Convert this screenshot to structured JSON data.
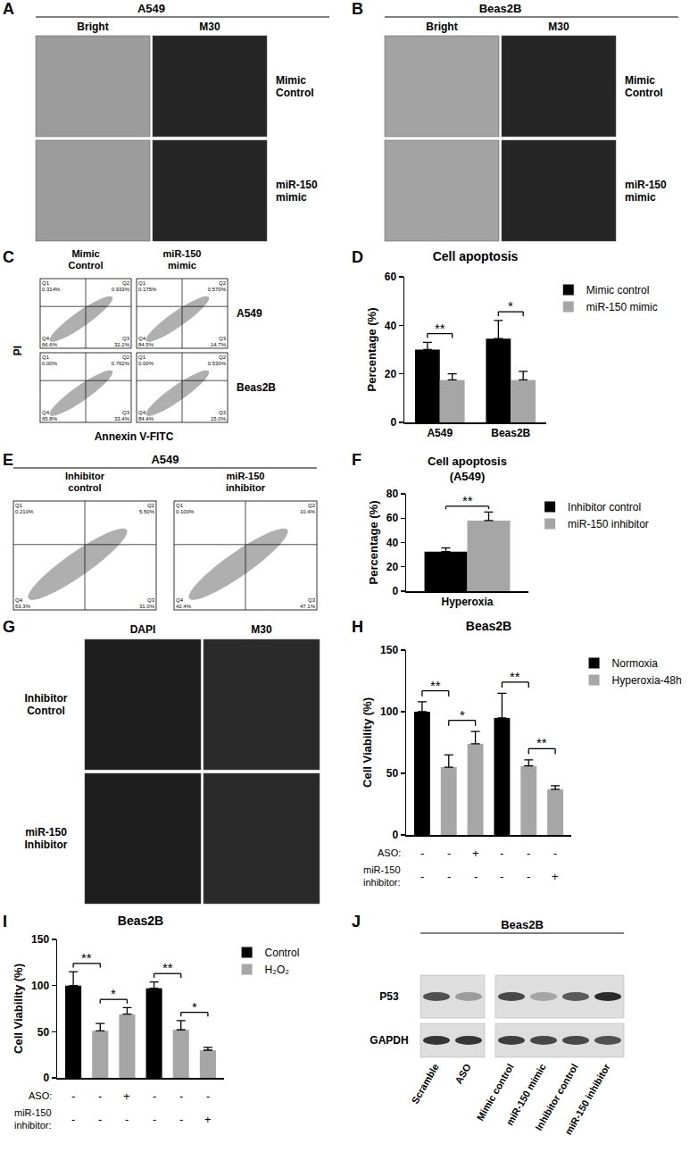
{
  "chart_data": [
    {
      "panel": "D",
      "type": "bar",
      "title": "Cell apoptosis",
      "y_label": "Percentage (%)",
      "categories": [
        "A549",
        "Beas2B"
      ],
      "series": [
        {
          "name": "Mimic control",
          "color": "#000000",
          "values": [
            30,
            34.5
          ],
          "errors": [
            3,
            7.5
          ]
        },
        {
          "name": "miR-150 mimic",
          "color": "#a6a6a6",
          "values": [
            17.5,
            17.5
          ],
          "errors": [
            2.5,
            3.5
          ]
        }
      ],
      "ylim": [
        0,
        60
      ],
      "yticks": [
        0,
        20,
        40,
        60
      ],
      "grid": false,
      "legend": "right",
      "comparisons": [
        {
          "category": "A549",
          "label": "**"
        },
        {
          "category": "Beas2B",
          "label": "*"
        }
      ]
    },
    {
      "panel": "F",
      "type": "bar",
      "title": "Cell apoptosis\n(A549)",
      "y_label": "Percentage (%)",
      "categories": [
        "Hyperoxia"
      ],
      "series": [
        {
          "name": "Inhibitor control",
          "color": "#000000",
          "values": [
            32.5
          ],
          "errors": [
            3
          ]
        },
        {
          "name": "miR-150 inhibitor",
          "color": "#a6a6a6",
          "values": [
            58
          ],
          "errors": [
            7
          ]
        }
      ],
      "ylim": [
        0,
        80
      ],
      "yticks": [
        0,
        20,
        40,
        60,
        80
      ],
      "grid": false,
      "legend": "right",
      "comparisons": [
        {
          "category": "Hyperoxia",
          "label": "**"
        }
      ]
    },
    {
      "panel": "H",
      "type": "bar",
      "title": "Beas2B",
      "y_label": "Cell Viability (%)",
      "categories": [
        null,
        null,
        null,
        null,
        null,
        null
      ],
      "series": [
        {
          "name": "Normoxia",
          "color": "#000000",
          "values": [
            100,
            null,
            null,
            95,
            null,
            null
          ],
          "errors": [
            8,
            null,
            null,
            20,
            null,
            null
          ]
        },
        {
          "name": "Hyperoxia-48h",
          "color": "#a6a6a6",
          "values": [
            null,
            55,
            74,
            null,
            56,
            37
          ],
          "errors": [
            null,
            10,
            10,
            null,
            5,
            3
          ]
        }
      ],
      "ylim": [
        0,
        150
      ],
      "yticks": [
        0,
        50,
        100,
        150
      ],
      "grid": false,
      "legend": "right",
      "tick_labels": "y",
      "treatments": [
        {
          "label": "ASO:",
          "marks": [
            "-",
            "-",
            "+",
            "-",
            "-",
            "-"
          ]
        },
        {
          "label": "miR-150\ninhibitor:",
          "marks": [
            "-",
            "-",
            "-",
            "-",
            "-",
            "+"
          ]
        }
      ],
      "comparisons": [
        {
          "between": [
            0,
            1
          ],
          "label": "**"
        },
        {
          "between": [
            1,
            2
          ],
          "label": "*"
        },
        {
          "between": [
            3,
            4
          ],
          "label": "**"
        },
        {
          "between": [
            4,
            5
          ],
          "label": "**"
        }
      ]
    },
    {
      "panel": "I",
      "type": "bar",
      "title": "Beas2B",
      "y_label": "Cell Viability (%)",
      "categories": [
        null,
        null,
        null,
        null,
        null,
        null
      ],
      "series": [
        {
          "name": "Control",
          "color": "#000000",
          "values": [
            100,
            null,
            null,
            97,
            null,
            null
          ],
          "errors": [
            15,
            null,
            null,
            7,
            null,
            null
          ]
        },
        {
          "name": "H₂O₂",
          "color": "#a6a6a6",
          "values": [
            null,
            51,
            69,
            null,
            52,
            30
          ],
          "errors": [
            null,
            8,
            7,
            null,
            10,
            3
          ]
        }
      ],
      "ylim": [
        0,
        150
      ],
      "yticks": [
        0,
        50,
        100,
        150
      ],
      "grid": false,
      "legend": "right",
      "tick_labels": "y",
      "treatments": [
        {
          "label": "ASO:",
          "marks": [
            "-",
            "-",
            "+",
            "-",
            "-",
            "-"
          ]
        },
        {
          "label": "miR-150\ninhibitor:",
          "marks": [
            "-",
            "-",
            "-",
            "-",
            "-",
            "+"
          ]
        }
      ],
      "comparisons": [
        {
          "between": [
            0,
            1
          ],
          "label": "**"
        },
        {
          "between": [
            1,
            2
          ],
          "label": "*"
        },
        {
          "between": [
            3,
            4
          ],
          "label": "**"
        },
        {
          "between": [
            4,
            5
          ],
          "label": "*"
        }
      ]
    }
  ],
  "panels": [
    {
      "panel": "A",
      "type": "micrograph",
      "title": "A549",
      "columns": [
        "Bright",
        "M30"
      ],
      "rows": [
        "Mimic\nControl",
        "miR-150\nmimic"
      ]
    },
    {
      "panel": "B",
      "type": "micrograph",
      "title": "Beas2B",
      "columns": [
        "Bright",
        "M30"
      ],
      "rows": [
        "Mimic\nControl",
        "miR-150\nmimic"
      ]
    },
    {
      "panel": "C",
      "type": "flow",
      "columns": [
        "Mimic\nControl",
        "miR-150\nmimic"
      ],
      "rows": [
        "A549",
        "Beas2B"
      ],
      "x_label": "Annexin V-FITC",
      "y_label": "PI",
      "plots": [
        {
          "Q1": "Q1\n0.314%",
          "Q2": "Q2\n0.933%",
          "Q3": "Q3\n32.2%",
          "Q4": "Q4\n66.6%"
        },
        {
          "Q1": "Q1\n0.175%",
          "Q2": "Q2\n0.570%",
          "Q3": "Q3\n14.7%",
          "Q4": "Q4\n84.5%"
        },
        {
          "Q1": "Q1\n0.00%",
          "Q2": "Q2\n0.762%",
          "Q3": "Q3\n33.4%",
          "Q4": "Q4\n65.8%"
        },
        {
          "Q1": "Q1\n0.00%",
          "Q2": "Q2\n0.530%",
          "Q3": "Q3\n15.0%",
          "Q4": "Q4\n84.4%"
        }
      ]
    },
    {
      "panel": "E",
      "type": "flow",
      "title": "A549",
      "columns": [
        "Inhibitor\ncontrol",
        "miR-150\ninhibitor"
      ],
      "plots": [
        {
          "Q1": "Q1\n0.210%",
          "Q2": "Q2\n5.50%",
          "Q3": "Q3\n31.0%",
          "Q4": "Q4\n63.3%"
        },
        {
          "Q1": "Q1\n0.100%",
          "Q2": "Q2\n10.4%",
          "Q3": "Q3\n47.1%",
          "Q4": "Q4\n42.4%"
        }
      ]
    },
    {
      "panel": "G",
      "type": "micrograph",
      "columns": [
        "DAPI",
        "M30"
      ],
      "rows": [
        "Inhibitor\nControl",
        "miR-150\nInhibitor"
      ]
    },
    {
      "panel": "J",
      "type": "blot",
      "title": "Beas2B",
      "rows": [
        "P53",
        "GAPDH"
      ],
      "blots": [
        {
          "lanes": [
            "Scramble",
            "ASO"
          ],
          "intensity": {
            "P53": [
              0.75,
              0.35
            ],
            "GAPDH": [
              0.9,
              0.9
            ]
          }
        },
        {
          "lanes": [
            "Mimic control",
            "miR-150 mimic",
            "Inhibitor control",
            "miR-150 inhibitor"
          ],
          "intensity": {
            "P53": [
              0.8,
              0.3,
              0.7,
              0.95
            ],
            "GAPDH": [
              0.85,
              0.8,
              0.8,
              0.75
            ]
          }
        }
      ]
    }
  ]
}
